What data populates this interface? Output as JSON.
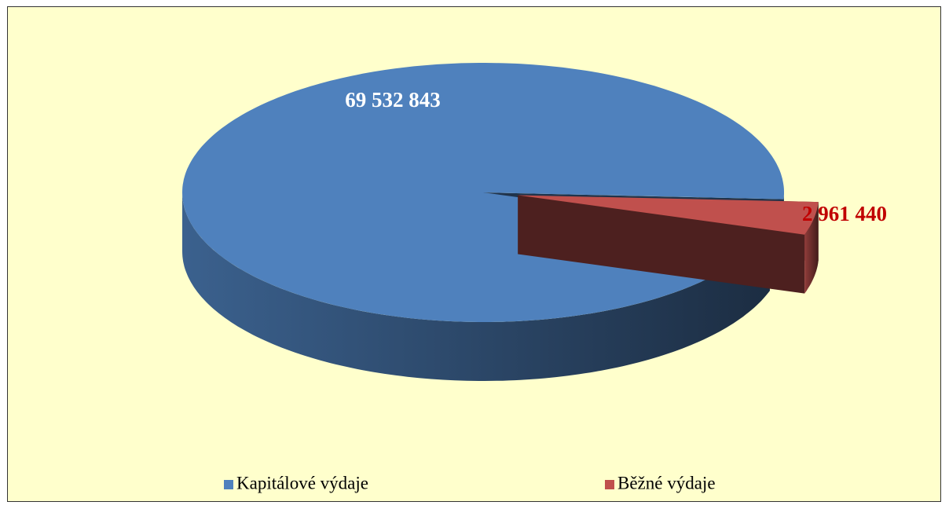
{
  "chart_data": {
    "type": "pie3d",
    "categories": [
      "Kapitálové výdaje",
      "Běžné výdaje"
    ],
    "values": [
      69532843,
      2961440
    ],
    "value_labels": [
      "69 532 843",
      "2 961 440"
    ],
    "colors": [
      "#4f81bd",
      "#c0504d"
    ],
    "label_colors": [
      "#ffffff",
      "#c00000"
    ],
    "legend": "bottom"
  }
}
